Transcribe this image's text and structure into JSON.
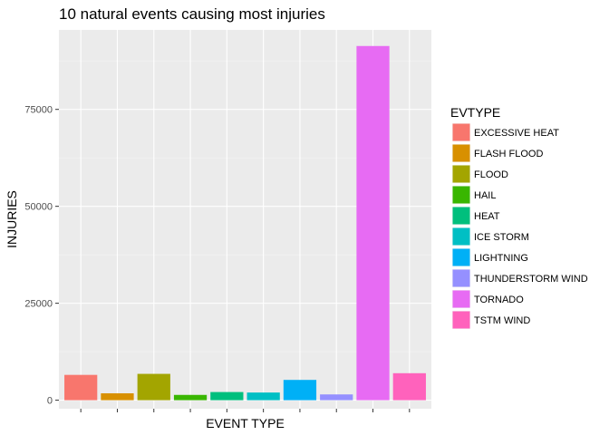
{
  "chart_data": {
    "type": "bar",
    "title": "10 natural events causing most injuries",
    "xlabel": "EVENT TYPE",
    "ylabel": "INJURIES",
    "ylim": [
      -2200,
      95500
    ],
    "yticks": [
      0,
      25000,
      50000,
      75000
    ],
    "ytick_labels": [
      "0",
      "25000",
      "50000",
      "75000"
    ],
    "x_tick_labels_shown": false,
    "grid": true,
    "legend": {
      "title": "EVTYPE",
      "position": "right"
    },
    "categories": [
      "EXCESSIVE HEAT",
      "FLASH FLOOD",
      "FLOOD",
      "HAIL",
      "HEAT",
      "ICE STORM",
      "LIGHTNING",
      "THUNDERSTORM WIND",
      "TORNADO",
      "TSTM WIND"
    ],
    "values": [
      6525,
      1777,
      6789,
      1361,
      2100,
      1975,
      5230,
      1488,
      91346,
      6957
    ],
    "colors": [
      "#F8766D",
      "#D89000",
      "#A3A500",
      "#39B600",
      "#00BF7D",
      "#00BFC4",
      "#00B0F6",
      "#9590FF",
      "#E76BF3",
      "#FF62BC"
    ]
  }
}
